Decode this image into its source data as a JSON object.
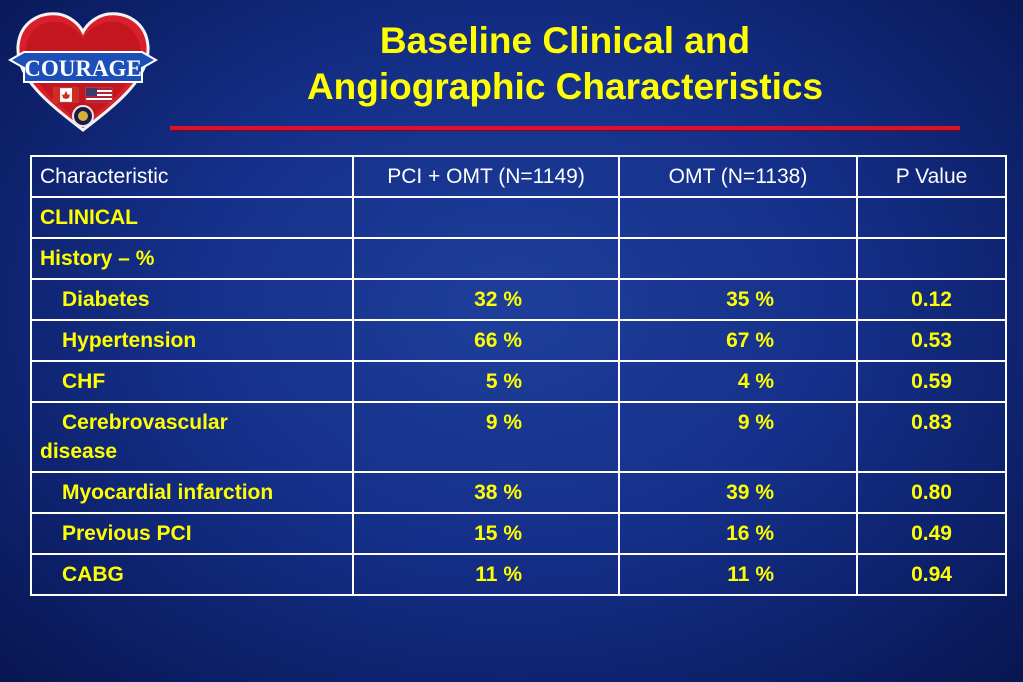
{
  "logo": {
    "text": "COURAGE"
  },
  "title": {
    "line1": "Baseline Clinical and",
    "line2": "Angiographic Characteristics"
  },
  "table": {
    "headers": [
      "Characteristic",
      "PCI + OMT (N=1149)",
      "OMT (N=1138)",
      "P Value"
    ],
    "section1": "CLINICAL",
    "section2": "History – %",
    "rows": [
      {
        "label": "Diabetes",
        "pci": "32 %",
        "omt": "35 %",
        "p": "0.12"
      },
      {
        "label": "Hypertension",
        "pci": "66 %",
        "omt": "67 %",
        "p": "0.53"
      },
      {
        "label": "CHF",
        "pci": "5 %",
        "omt": "4 %",
        "p": "0.59"
      },
      {
        "label_line1": "Cerebrovascular",
        "label_line2": "disease",
        "pci": "9 %",
        "omt": "9 %",
        "p": "0.83"
      },
      {
        "label": "Myocardial infarction",
        "pci": "38 %",
        "omt": "39 %",
        "p": "0.80"
      },
      {
        "label": "Previous PCI",
        "pci": "15 %",
        "omt": "16 %",
        "p": "0.49"
      },
      {
        "label": "CABG",
        "pci": "11 %",
        "omt": "11 %",
        "p": "0.94"
      }
    ]
  },
  "colors": {
    "title": "#ffff00",
    "rule": "#e0102a",
    "header_text": "#ffffff",
    "body_text": "#ffff00",
    "background": "#15308a"
  }
}
